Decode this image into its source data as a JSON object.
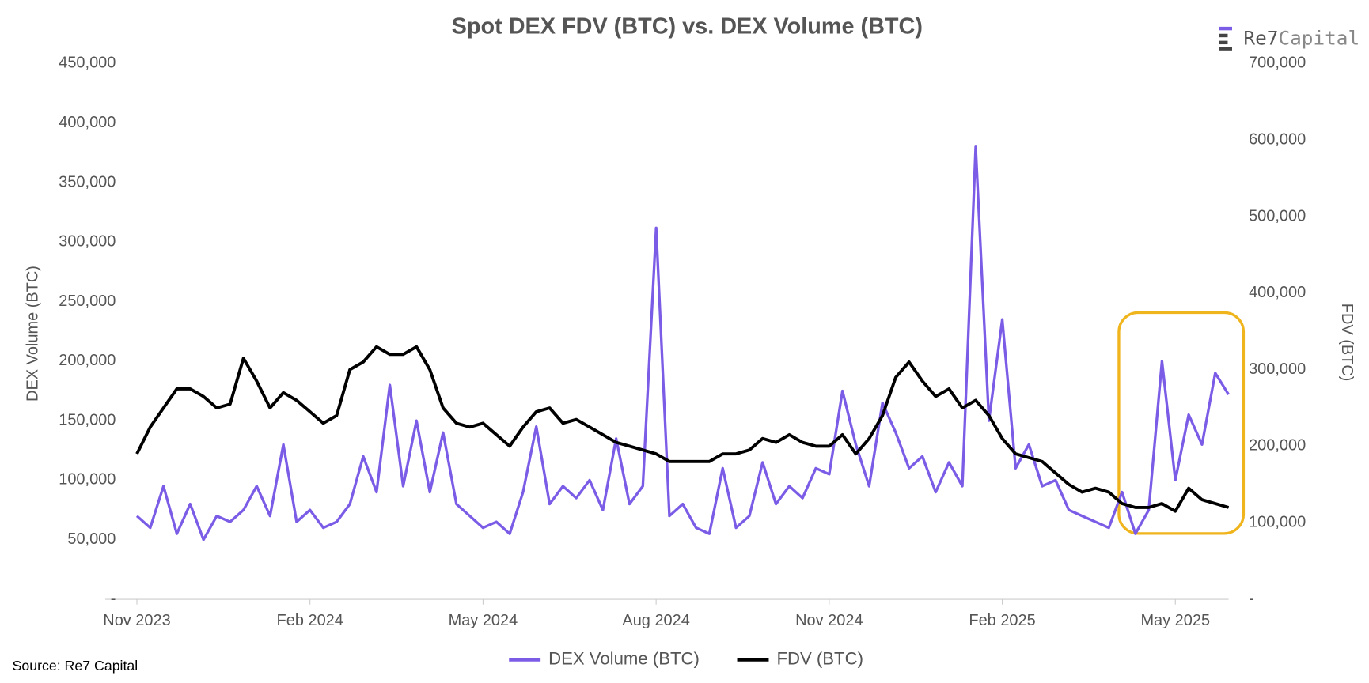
{
  "chart_data": {
    "type": "line",
    "title": "Spot DEX FDV (BTC) vs. DEX Volume (BTC)",
    "logo": [
      "Re7",
      "Capital"
    ],
    "source": "Source: Re7 Capital",
    "y_label": "DEX Volume (BTC)",
    "y2_label": "FDV (BTC)",
    "categories": [
      "Nov 2023",
      null,
      null,
      null,
      null,
      null,
      null,
      null,
      null,
      null,
      null,
      null,
      null,
      "Feb 2024",
      null,
      null,
      null,
      null,
      null,
      null,
      null,
      null,
      null,
      null,
      null,
      null,
      "May 2024",
      null,
      null,
      null,
      null,
      null,
      null,
      null,
      null,
      null,
      null,
      null,
      null,
      "Aug 2024",
      null,
      null,
      null,
      null,
      null,
      null,
      null,
      null,
      null,
      null,
      null,
      null,
      "Nov 2024",
      null,
      null,
      null,
      null,
      null,
      null,
      null,
      null,
      null,
      null,
      null,
      null,
      "Feb 2025",
      null,
      null,
      null,
      null,
      null,
      null,
      null,
      null,
      null,
      null,
      null,
      null,
      "May 2025",
      null,
      null,
      null,
      null
    ],
    "series": [
      {
        "name": "DEX Volume (BTC)",
        "color": "#7b5ce6",
        "axis": "y",
        "values": [
          70000,
          60000,
          95000,
          55000,
          80000,
          50000,
          70000,
          65000,
          75000,
          95000,
          70000,
          130000,
          65000,
          75000,
          60000,
          65000,
          80000,
          120000,
          90000,
          180000,
          95000,
          150000,
          90000,
          140000,
          80000,
          70000,
          60000,
          65000,
          55000,
          90000,
          145000,
          80000,
          95000,
          85000,
          100000,
          75000,
          135000,
          80000,
          95000,
          312000,
          70000,
          80000,
          60000,
          55000,
          110000,
          60000,
          70000,
          115000,
          80000,
          95000,
          85000,
          110000,
          105000,
          175000,
          130000,
          95000,
          165000,
          140000,
          110000,
          120000,
          90000,
          115000,
          95000,
          380000,
          150000,
          235000,
          110000,
          130000,
          95000,
          100000,
          75000,
          70000,
          65000,
          60000,
          90000,
          55000,
          75000,
          200000,
          100000,
          155000,
          130000,
          190000,
          172000
        ]
      },
      {
        "name": "FDV (BTC)",
        "color": "#000000",
        "axis": "y2",
        "values": [
          190000,
          225000,
          250000,
          275000,
          275000,
          265000,
          250000,
          255000,
          315000,
          285000,
          250000,
          270000,
          260000,
          245000,
          230000,
          240000,
          300000,
          310000,
          330000,
          320000,
          320000,
          330000,
          300000,
          250000,
          230000,
          225000,
          230000,
          215000,
          200000,
          225000,
          245000,
          250000,
          230000,
          235000,
          225000,
          215000,
          205000,
          200000,
          195000,
          190000,
          180000,
          180000,
          180000,
          180000,
          190000,
          190000,
          195000,
          210000,
          205000,
          215000,
          205000,
          200000,
          200000,
          215000,
          190000,
          210000,
          240000,
          290000,
          310000,
          285000,
          265000,
          275000,
          250000,
          260000,
          240000,
          210000,
          190000,
          185000,
          180000,
          165000,
          150000,
          140000,
          145000,
          140000,
          125000,
          120000,
          120000,
          125000,
          115000,
          145000,
          130000,
          125000,
          120000
        ]
      }
    ],
    "ylim": [
      0,
      450000
    ],
    "yticks": [
      {
        "value": 0,
        "label": "-"
      },
      {
        "value": 50000,
        "label": "50,000"
      },
      {
        "value": 100000,
        "label": "100,000"
      },
      {
        "value": 150000,
        "label": "150,000"
      },
      {
        "value": 200000,
        "label": "200,000"
      },
      {
        "value": 250000,
        "label": "250,000"
      },
      {
        "value": 300000,
        "label": "300,000"
      },
      {
        "value": 350000,
        "label": "350,000"
      },
      {
        "value": 400000,
        "label": "400,000"
      },
      {
        "value": 450000,
        "label": "450,000"
      }
    ],
    "y2lim": [
      0,
      700000
    ],
    "y2ticks": [
      {
        "value": 0,
        "label": "-"
      },
      {
        "value": 100000,
        "label": "100,000"
      },
      {
        "value": 200000,
        "label": "200,000"
      },
      {
        "value": 300000,
        "label": "300,000"
      },
      {
        "value": 400000,
        "label": "400,000"
      },
      {
        "value": 500000,
        "label": "500,000"
      },
      {
        "value": 600000,
        "label": "600,000"
      },
      {
        "value": 700000,
        "label": "700,000"
      }
    ],
    "legend": "bottom"
  }
}
